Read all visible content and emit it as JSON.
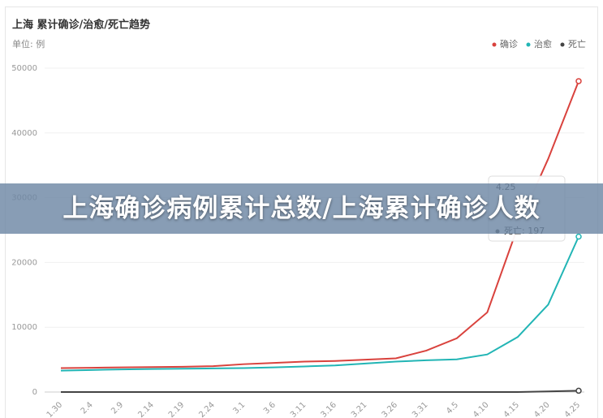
{
  "chart_data": {
    "type": "line",
    "title": "上海 累计确诊/治愈/死亡趋势",
    "subtitle": "单位: 例",
    "categories": [
      "1.30",
      "2.4",
      "2.9",
      "2.14",
      "2.19",
      "2.24",
      "3.1",
      "3.6",
      "3.11",
      "3.16",
      "3.21",
      "3.26",
      "3.31",
      "4.5",
      "4.10",
      "4.15",
      "4.20",
      "4.25"
    ],
    "series": [
      {
        "name": "确诊",
        "color": "#d9423d",
        "values": [
          3700,
          3750,
          3800,
          3850,
          3900,
          4000,
          4300,
          4500,
          4700,
          4800,
          5000,
          5200,
          6400,
          8300,
          12300,
          25500,
          36000,
          48000
        ]
      },
      {
        "name": "治愈",
        "color": "#22b5b5",
        "values": [
          3300,
          3400,
          3500,
          3550,
          3600,
          3650,
          3700,
          3800,
          3950,
          4100,
          4400,
          4700,
          4900,
          5050,
          5800,
          8500,
          13500,
          24000
        ]
      },
      {
        "name": "死亡",
        "color": "#444444",
        "values": [
          7,
          7,
          7,
          7,
          7,
          7,
          7,
          7,
          7,
          7,
          7,
          7,
          7,
          7,
          7,
          7,
          87,
          197
        ]
      }
    ],
    "ylim": [
      0,
      50000
    ],
    "yticks": [
      0,
      10000,
      20000,
      30000,
      40000,
      50000
    ],
    "grid": true,
    "legend": "top-right",
    "tooltip": {
      "title": "4.25",
      "label": "死亡: 197"
    },
    "banner": "上海确诊病例累计总数/上海累计确诊人数"
  }
}
